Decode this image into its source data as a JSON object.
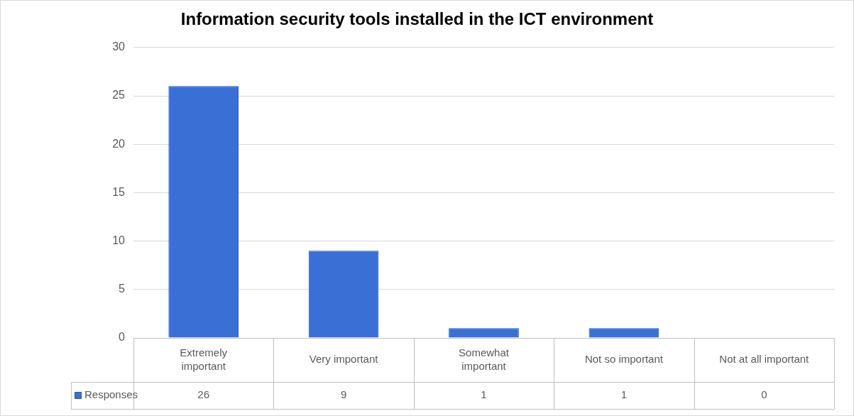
{
  "chart_data": {
    "type": "bar",
    "title": "Information security tools installed in the ICT environment",
    "categories": [
      "Extremely important",
      "Very important",
      "Somewhat important",
      "Not so important",
      "Not at all important"
    ],
    "series": [
      {
        "name": "Responses",
        "color": "#3a6fd6",
        "values": [
          26,
          9,
          1,
          1,
          0
        ]
      }
    ],
    "ylim": [
      0,
      30
    ],
    "yticks": [
      0,
      5,
      10,
      15,
      20,
      25,
      30
    ],
    "grid": "y",
    "legend": "bottom",
    "data_labels": true
  }
}
